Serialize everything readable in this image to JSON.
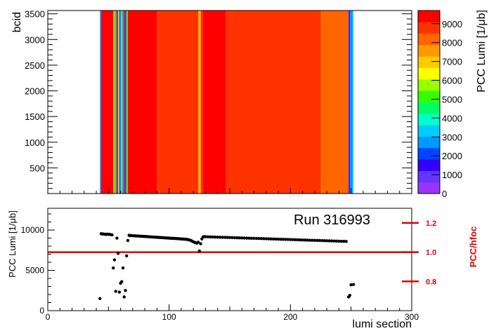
{
  "chart_data": [
    {
      "type": "heatmap",
      "ylabel": "bcid",
      "colorbar_label": "PCC Lumi [1/μb]",
      "y_ticks": [
        500,
        1000,
        1500,
        2000,
        2500,
        3000,
        3500
      ],
      "colorbar_ticks": [
        0,
        1000,
        2000,
        3000,
        4000,
        5000,
        6000,
        7000,
        8000,
        9000
      ],
      "colorbar_range": [
        0,
        9700
      ],
      "ylim": [
        0,
        3564
      ],
      "xlim": [
        0,
        300
      ],
      "colors": {
        "c1": "#9933ff",
        "c2": "#6633ff",
        "c3": "#3300ff",
        "c4": "#0044ff",
        "c5": "#0099ff",
        "c6": "#00ccff",
        "c7": "#00ffcc",
        "c8": "#00ff66",
        "c9": "#33ff00",
        "c10": "#99ff00",
        "c11": "#ffff00",
        "c12": "#ffcc00",
        "c13": "#ff9900",
        "c14": "#ff6600",
        "c15": "#ff3300",
        "c16": "#ff0000"
      },
      "columns": [
        {
          "x0": 43,
          "x1": 44,
          "value": 3000
        },
        {
          "x0": 44,
          "x1": 53,
          "value": 9300
        },
        {
          "x0": 53,
          "x1": 54,
          "value": 9500
        },
        {
          "x0": 54,
          "x1": 55,
          "value": 7500
        },
        {
          "x0": 55,
          "x1": 56,
          "value": 5200
        },
        {
          "x0": 56,
          "x1": 57,
          "value": 2600
        },
        {
          "x0": 57,
          "x1": 58,
          "value": 9200
        },
        {
          "x0": 58,
          "x1": 59,
          "value": 6900
        },
        {
          "x0": 59,
          "x1": 60,
          "value": 2200
        },
        {
          "x0": 60,
          "x1": 61,
          "value": 4200
        },
        {
          "x0": 61,
          "x1": 62,
          "value": 3400
        },
        {
          "x0": 62,
          "x1": 63,
          "value": 9000
        },
        {
          "x0": 63,
          "x1": 64,
          "value": 2400
        },
        {
          "x0": 64,
          "x1": 65,
          "value": 8600
        },
        {
          "x0": 65,
          "x1": 66,
          "value": 4500
        },
        {
          "x0": 66,
          "x1": 90,
          "value": 9500
        },
        {
          "x0": 90,
          "x1": 124,
          "value": 8700
        },
        {
          "x0": 124,
          "x1": 125,
          "value": 7800
        },
        {
          "x0": 125,
          "x1": 126,
          "value": 6900
        },
        {
          "x0": 126,
          "x1": 128,
          "value": 8700
        },
        {
          "x0": 128,
          "x1": 147,
          "value": 9500
        },
        {
          "x0": 147,
          "x1": 225,
          "value": 8800
        },
        {
          "x0": 225,
          "x1": 248,
          "value": 8200
        },
        {
          "x0": 248,
          "x1": 249,
          "value": 1700
        },
        {
          "x0": 249,
          "x1": 251,
          "value": 3000
        },
        {
          "x0": 251,
          "x1": 252,
          "value": 3300
        }
      ]
    },
    {
      "type": "scatter",
      "ylabel": "PCC Lumi [1/μb]",
      "xlabel": "lumi section",
      "y2label": "PCC/hfoc",
      "annotation": "Run 316993",
      "xlim": [
        0,
        300
      ],
      "ylim": [
        0,
        12700
      ],
      "y2lim": [
        0.6,
        1.3
      ],
      "x_ticks": [
        0,
        100,
        200,
        300
      ],
      "y_ticks": [
        0,
        5000,
        10000
      ],
      "y2_ticks": [
        0.8,
        1.0,
        1.2
      ],
      "reference_line_y2": 1.0,
      "points": [
        [
          43,
          1500
        ],
        [
          44,
          9550
        ],
        [
          45,
          9500
        ],
        [
          46,
          9520
        ],
        [
          47,
          9480
        ],
        [
          48,
          9450
        ],
        [
          49,
          9500
        ],
        [
          50,
          9460
        ],
        [
          51,
          9480
        ],
        [
          52,
          9420
        ],
        [
          53,
          9400
        ],
        [
          54,
          5300
        ],
        [
          55,
          6300
        ],
        [
          56,
          2400
        ],
        [
          57,
          9000
        ],
        [
          58,
          7100
        ],
        [
          59,
          2300
        ],
        [
          60,
          3400
        ],
        [
          61,
          3600
        ],
        [
          62,
          5300
        ],
        [
          63,
          1700
        ],
        [
          64,
          2500
        ],
        [
          65,
          6800
        ],
        [
          66,
          8700
        ],
        [
          67,
          9350
        ],
        [
          68,
          9300
        ],
        [
          69,
          9320
        ],
        [
          70,
          9300
        ],
        [
          71,
          9280
        ],
        [
          72,
          9290
        ],
        [
          73,
          9260
        ],
        [
          74,
          9270
        ],
        [
          75,
          9250
        ],
        [
          76,
          9240
        ],
        [
          77,
          9230
        ],
        [
          78,
          9220
        ],
        [
          79,
          9210
        ],
        [
          80,
          9200
        ],
        [
          81,
          9190
        ],
        [
          82,
          9180
        ],
        [
          83,
          9170
        ],
        [
          84,
          9160
        ],
        [
          85,
          9150
        ],
        [
          86,
          9140
        ],
        [
          87,
          9130
        ],
        [
          88,
          9120
        ],
        [
          89,
          9110
        ],
        [
          90,
          9100
        ],
        [
          91,
          9090
        ],
        [
          92,
          9080
        ],
        [
          93,
          9070
        ],
        [
          94,
          9060
        ],
        [
          95,
          9050
        ],
        [
          96,
          9040
        ],
        [
          97,
          9030
        ],
        [
          98,
          9020
        ],
        [
          99,
          9010
        ],
        [
          100,
          9000
        ],
        [
          101,
          8990
        ],
        [
          102,
          8980
        ],
        [
          103,
          8970
        ],
        [
          104,
          8960
        ],
        [
          105,
          8950
        ],
        [
          106,
          8940
        ],
        [
          107,
          8930
        ],
        [
          108,
          8920
        ],
        [
          109,
          8910
        ],
        [
          110,
          8900
        ],
        [
          111,
          8890
        ],
        [
          112,
          8880
        ],
        [
          113,
          8870
        ],
        [
          114,
          8850
        ],
        [
          115,
          8830
        ],
        [
          116,
          8800
        ],
        [
          117,
          8760
        ],
        [
          118,
          8700
        ],
        [
          119,
          8620
        ],
        [
          120,
          8540
        ],
        [
          121,
          8480
        ],
        [
          122,
          8420
        ],
        [
          123,
          8380
        ],
        [
          124,
          8500
        ],
        [
          125,
          7400
        ],
        [
          126,
          8300
        ],
        [
          127,
          8900
        ],
        [
          128,
          9150
        ],
        [
          129,
          9180
        ],
        [
          130,
          9170
        ],
        [
          132,
          9160
        ],
        [
          134,
          9150
        ],
        [
          136,
          9140
        ],
        [
          138,
          9130
        ],
        [
          140,
          9120
        ],
        [
          142,
          9110
        ],
        [
          144,
          9100
        ],
        [
          146,
          9090
        ],
        [
          148,
          9080
        ],
        [
          150,
          9070
        ],
        [
          152,
          9060
        ],
        [
          154,
          9050
        ],
        [
          156,
          9040
        ],
        [
          158,
          9030
        ],
        [
          160,
          9020
        ],
        [
          162,
          9010
        ],
        [
          164,
          9000
        ],
        [
          166,
          8990
        ],
        [
          168,
          8980
        ],
        [
          170,
          8970
        ],
        [
          172,
          8960
        ],
        [
          174,
          8950
        ],
        [
          176,
          8940
        ],
        [
          178,
          8930
        ],
        [
          180,
          8920
        ],
        [
          182,
          8910
        ],
        [
          184,
          8900
        ],
        [
          186,
          8890
        ],
        [
          188,
          8880
        ],
        [
          190,
          8870
        ],
        [
          192,
          8860
        ],
        [
          194,
          8850
        ],
        [
          196,
          8840
        ],
        [
          198,
          8830
        ],
        [
          200,
          8820
        ],
        [
          202,
          8810
        ],
        [
          204,
          8800
        ],
        [
          206,
          8790
        ],
        [
          208,
          8780
        ],
        [
          210,
          8770
        ],
        [
          212,
          8760
        ],
        [
          214,
          8750
        ],
        [
          216,
          8740
        ],
        [
          218,
          8730
        ],
        [
          220,
          8720
        ],
        [
          222,
          8710
        ],
        [
          224,
          8700
        ],
        [
          226,
          8690
        ],
        [
          228,
          8680
        ],
        [
          230,
          8670
        ],
        [
          232,
          8660
        ],
        [
          234,
          8650
        ],
        [
          236,
          8640
        ],
        [
          238,
          8630
        ],
        [
          240,
          8620
        ],
        [
          242,
          8610
        ],
        [
          244,
          8600
        ],
        [
          246,
          8590
        ],
        [
          248,
          1700
        ],
        [
          249,
          1900
        ],
        [
          250,
          3200
        ],
        [
          252,
          3250
        ]
      ]
    }
  ]
}
